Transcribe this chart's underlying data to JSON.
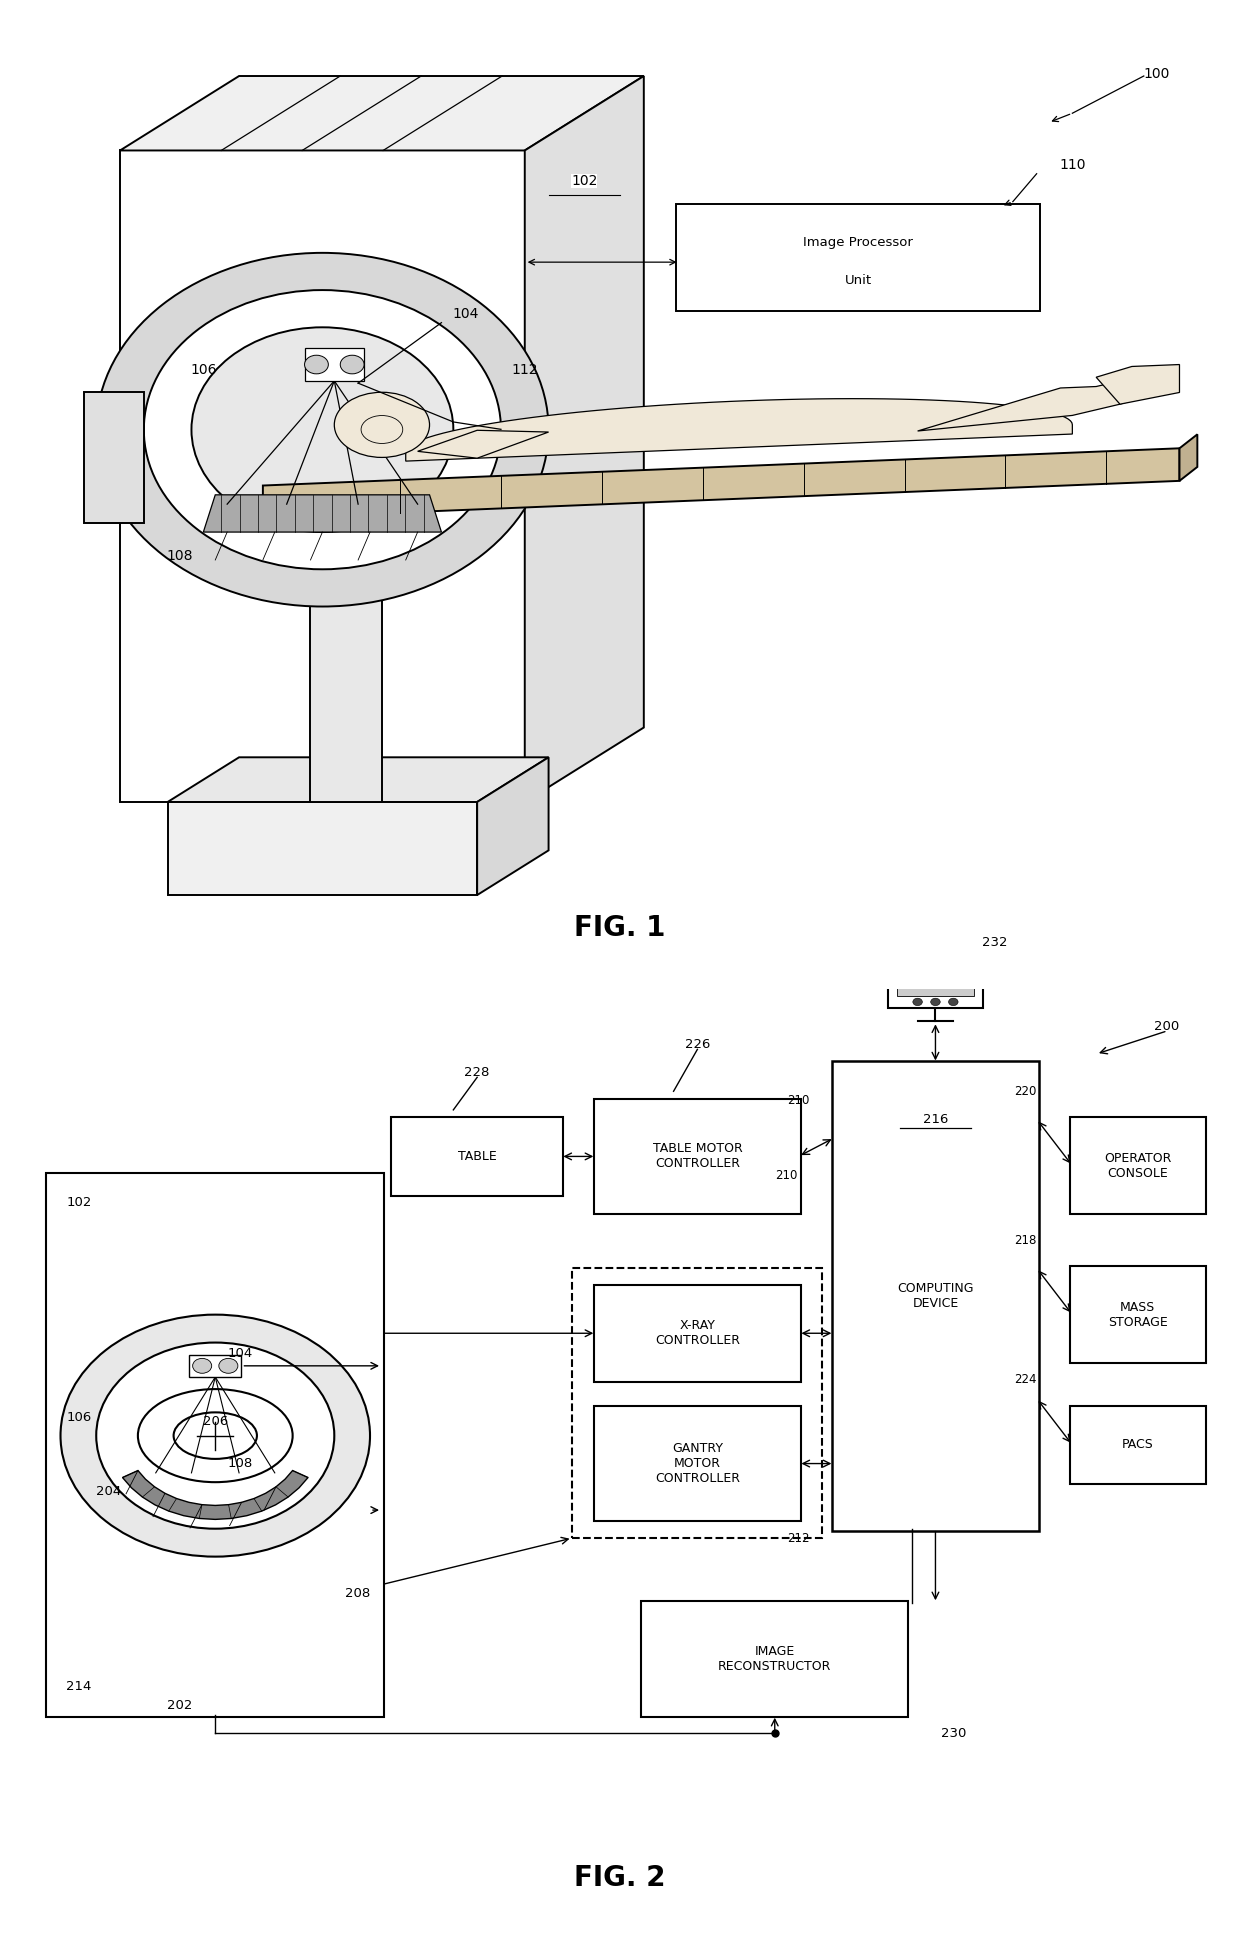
{
  "bg_color": "#ffffff",
  "fig_width": 12.4,
  "fig_height": 19.39,
  "line_color": "#000000",
  "fig1": {
    "label": "FIG. 1",
    "ref100": "100",
    "ref102": "102",
    "ref104": "104",
    "ref106": "106",
    "ref108": "108",
    "ref110": "110",
    "ref112": "112",
    "box110_text1": "Image Processor",
    "box110_text2": "Unit"
  },
  "fig2": {
    "label": "FIG. 2",
    "ref200": "200",
    "ref202": "202",
    "ref204": "204",
    "ref206": "206",
    "ref208": "208",
    "ref210": "210",
    "ref212": "212",
    "ref214": "214",
    "ref216": "216",
    "ref218": "218",
    "ref220": "220",
    "ref224": "224",
    "ref226": "226",
    "ref228": "228",
    "ref230": "230",
    "ref232": "232",
    "ref102": "102",
    "ref104": "104",
    "ref106": "106",
    "ref108": "108",
    "table_text": "TABLE",
    "tmc_text": "TABLE MOTOR\nCONTROLLER",
    "xray_text": "X-RAY\nCONTROLLER",
    "gantry_text": "GANTRY\nMOTOR\nCONTROLLER",
    "computing_text": "COMPUTING\nDEVICE",
    "computing_ref": "216",
    "image_recon_text": "IMAGE\nRECONSTRUCTOR",
    "operator_text": "OPERATOR\nCONSOLE",
    "mass_storage_text": "MASS\nSTORAGE",
    "pacs_text": "PACS"
  }
}
